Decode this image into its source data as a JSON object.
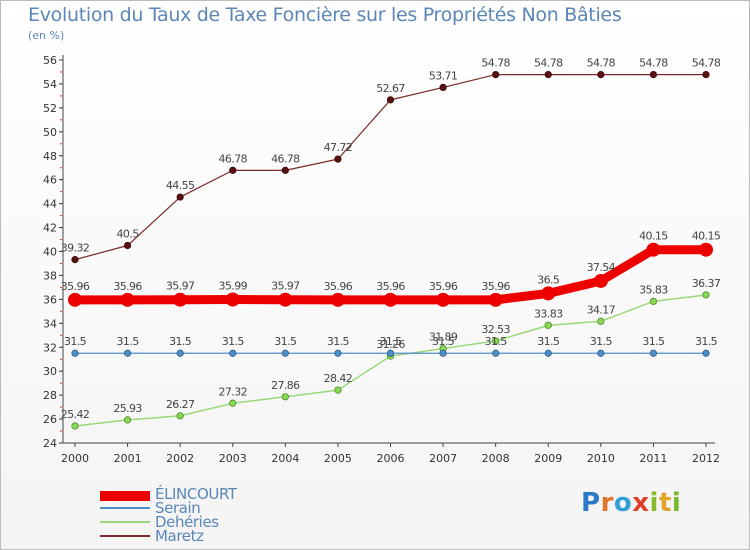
{
  "chart_data": {
    "type": "line",
    "title": "Evolution du Taux de Taxe Foncière sur les Propriétés Non Bâties",
    "subtitle": "(en %)",
    "xlabel": "",
    "ylabel": "",
    "x": [
      "2000",
      "2001",
      "2002",
      "2003",
      "2004",
      "2005",
      "2006",
      "2007",
      "2008",
      "2009",
      "2010",
      "2011",
      "2012"
    ],
    "ylim": [
      24,
      56
    ],
    "yticks": [
      24,
      26,
      28,
      30,
      32,
      34,
      36,
      38,
      40,
      42,
      44,
      46,
      48,
      50,
      52,
      54,
      56
    ],
    "grid": false,
    "legend_position": "bottom-left",
    "series": [
      {
        "name": "ÉLINCOURT",
        "color": "#ee0000",
        "values": [
          35.96,
          35.96,
          35.97,
          35.99,
          35.97,
          35.96,
          35.96,
          35.96,
          35.96,
          36.5,
          37.54,
          40.15,
          40.15
        ],
        "labels": [
          "35.96",
          "35.96",
          "35.97",
          "35.99",
          "35.97",
          "35.96",
          "35.96",
          "35.96",
          "35.96",
          "36.5",
          "37.54",
          "40.15",
          "40.15"
        ]
      },
      {
        "name": "Serain",
        "color": "#4f8fc8",
        "values": [
          31.5,
          31.5,
          31.5,
          31.5,
          31.5,
          31.5,
          31.5,
          31.5,
          31.5,
          31.5,
          31.5,
          31.5,
          31.5
        ],
        "labels": [
          "31.5",
          "31.5",
          "31.5",
          "31.5",
          "31.5",
          "31.5",
          "31.5",
          "31.5",
          "31.5",
          "31.5",
          "31.5",
          "31.5",
          "31.5"
        ]
      },
      {
        "name": "Dehéries",
        "color": "#9ad87a",
        "values": [
          25.42,
          25.93,
          26.27,
          27.32,
          27.86,
          28.42,
          31.26,
          31.89,
          32.53,
          33.83,
          34.17,
          35.83,
          36.37
        ],
        "labels": [
          "25.42",
          "25.93",
          "26.27",
          "27.32",
          "27.86",
          "28.42",
          "31.26",
          "31.89",
          "32.53",
          "33.83",
          "34.17",
          "35.83",
          "36.37"
        ]
      },
      {
        "name": "Maretz",
        "color": "#7a2a2a",
        "values": [
          39.32,
          40.5,
          44.55,
          46.78,
          46.78,
          47.72,
          52.67,
          53.71,
          54.78,
          54.78,
          54.78,
          54.78,
          54.78
        ],
        "labels": [
          "39.32",
          "40.5",
          "44.55",
          "46.78",
          "46.78",
          "47.72",
          "52.67",
          "53.71",
          "54.78",
          "54.78",
          "54.78",
          "54.78",
          "54.78"
        ]
      }
    ]
  },
  "branding": {
    "logo_letters": [
      "P",
      "r",
      "o",
      "x",
      "i",
      "t",
      "i"
    ]
  }
}
